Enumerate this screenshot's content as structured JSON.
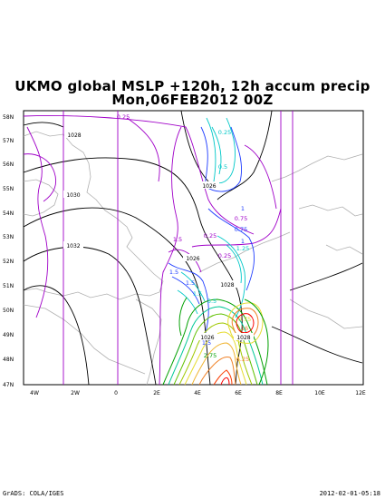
{
  "map": {
    "title_line1": "UKMO global MSLP +120h, 12h accum precip",
    "title_line2": "Mon,06FEB2012 00Z",
    "lat_labels": [
      "58N",
      "57N",
      "56N",
      "55N",
      "54N",
      "53N",
      "52N",
      "51N",
      "50N",
      "49N",
      "48N",
      "47N"
    ],
    "lon_labels": [
      "4W",
      "2W",
      "0",
      "2E",
      "4E",
      "6E",
      "8E",
      "10E",
      "12E"
    ],
    "isobar_labels": [
      "1028",
      "1030",
      "1032",
      "1026",
      "1026",
      "1028",
      "1026",
      "1028"
    ],
    "precip_labels": [
      "0.25",
      "0.25",
      "0.25",
      "1.5",
      "0.5",
      "0.75",
      "0.75",
      "1",
      "1.25",
      "1",
      "0.25",
      "1.5",
      "1.5",
      "1.5",
      "3.5",
      "2.75",
      "16",
      "6.25",
      "1.5",
      "0.75"
    ],
    "colors": {
      "coast": "#b0b0b0",
      "isobar": "#000000",
      "frame": "#000000",
      "precip_low": "#a000c8",
      "precip_blue": "#1e3cff",
      "precip_cyan": "#00c8c8",
      "precip_green": "#00a000",
      "precip_yellow": "#e6dc32",
      "precip_orange": "#f08228",
      "precip_red": "#fa0000"
    },
    "footer_left": "GrADS: COLA/IGES",
    "footer_right": "2012-02-01-05:18"
  }
}
